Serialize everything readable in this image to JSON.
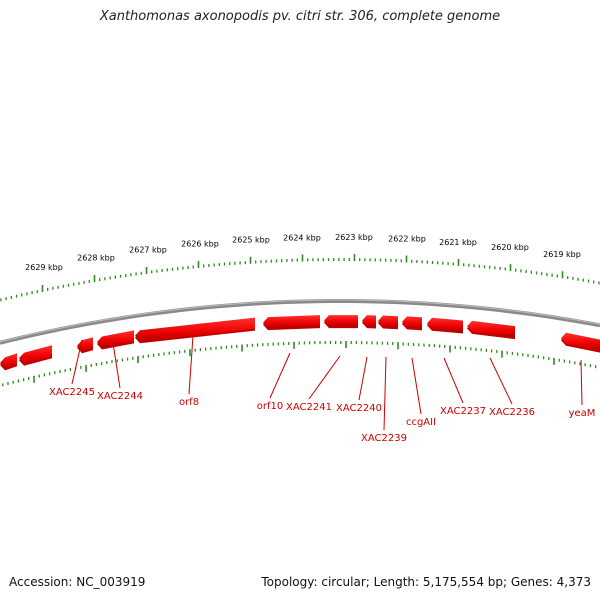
{
  "title": "Xanthomonas axonopodis pv. citri str. 306, complete genome",
  "footer": {
    "accession": "Accession: NC_003919",
    "stats": "Topology: circular; Length: 5,175,554 bp; Genes: 4,373"
  },
  "scale": {
    "unit": "kbp",
    "labels": [
      "2629 kbp",
      "2628 kbp",
      "2627 kbp",
      "2626 kbp",
      "2625 kbp",
      "2624 kbp",
      "2623 kbp",
      "2622 kbp",
      "2621 kbp",
      "2620 kbp",
      "2619 kbp"
    ]
  },
  "genes": [
    {
      "name": "XAC2245"
    },
    {
      "name": "XAC2244"
    },
    {
      "name": "orf8"
    },
    {
      "name": "orf10"
    },
    {
      "name": "XAC2241"
    },
    {
      "name": "XAC2240"
    },
    {
      "name": "XAC2239"
    },
    {
      "name": "ccgAII"
    },
    {
      "name": "XAC2237"
    },
    {
      "name": "XAC2236"
    },
    {
      "name": "yeaM"
    }
  ],
  "colors": {
    "gene": "#ff0000",
    "gene_dark": "#c00000",
    "gene_label": "#cc0000",
    "backbone": "#8a8a8a",
    "ticks": "#2e8b1e",
    "title": "#222222"
  }
}
